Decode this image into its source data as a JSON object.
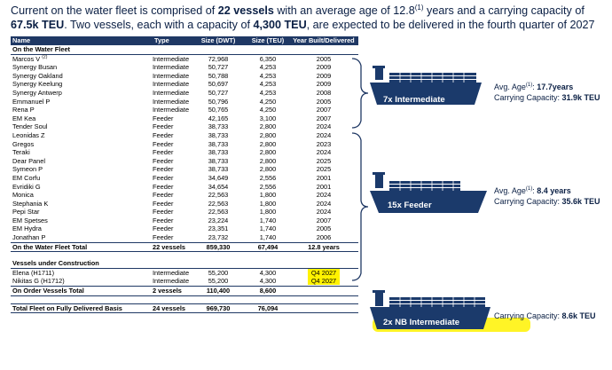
{
  "intro": {
    "p1": "Current on the water fleet is comprised of ",
    "vessels": "22 vessels",
    "p2": " with an average age of 12.8",
    "sup": "(1)",
    "p3": " years and a carrying capacity of ",
    "capacity": "67.5k TEU",
    "p4": ". Two vessels, each with a capacity of ",
    "teu": "4,300 TEU",
    "p5": ", are expected to be delivered in the fourth quarter of 2027"
  },
  "table": {
    "headers": {
      "name": "Name",
      "type": "Type",
      "dwt": "Size (DWT)",
      "teu": "Size (TEU)",
      "year": "Year Built/Delivered"
    },
    "section_water": "On the Water Fleet",
    "water_rows": [
      {
        "name": "Marcos V",
        "sup": "(2)",
        "type": "Intermediate",
        "dwt": "72,968",
        "teu": "6,350",
        "year": "2005"
      },
      {
        "name": "Synergy Busan",
        "type": "Intermediate",
        "dwt": "50,727",
        "teu": "4,253",
        "year": "2009"
      },
      {
        "name": "Synergy Oakland",
        "type": "Intermediate",
        "dwt": "50,788",
        "teu": "4,253",
        "year": "2009"
      },
      {
        "name": "Synergy Keelung",
        "type": "Intermediate",
        "dwt": "50,697",
        "teu": "4,253",
        "year": "2009"
      },
      {
        "name": "Synergy Antwerp",
        "type": "Intermediate",
        "dwt": "50,727",
        "teu": "4,253",
        "year": "2008"
      },
      {
        "name": "Emmanuel P",
        "type": "Intermediate",
        "dwt": "50,796",
        "teu": "4,250",
        "year": "2005"
      },
      {
        "name": "Rena P",
        "type": "Intermediate",
        "dwt": "50,765",
        "teu": "4,250",
        "year": "2007"
      },
      {
        "name": "EM Kea",
        "type": "Feeder",
        "dwt": "42,165",
        "teu": "3,100",
        "year": "2007"
      },
      {
        "name": "Tender Soul",
        "type": "Feeder",
        "dwt": "38,733",
        "teu": "2,800",
        "year": "2024"
      },
      {
        "name": "Leonidas Z",
        "type": "Feeder",
        "dwt": "38,733",
        "teu": "2,800",
        "year": "2024"
      },
      {
        "name": "Gregos",
        "type": "Feeder",
        "dwt": "38,733",
        "teu": "2,800",
        "year": "2023"
      },
      {
        "name": "Teraki",
        "type": "Feeder",
        "dwt": "38,733",
        "teu": "2,800",
        "year": "2024"
      },
      {
        "name": "Dear Panel",
        "type": "Feeder",
        "dwt": "38,733",
        "teu": "2,800",
        "year": "2025"
      },
      {
        "name": "Symeon P",
        "type": "Feeder",
        "dwt": "38,733",
        "teu": "2,800",
        "year": "2025"
      },
      {
        "name": "EM Corfu",
        "type": "Feeder",
        "dwt": "34,649",
        "teu": "2,556",
        "year": "2001"
      },
      {
        "name": "Evridiki G",
        "type": "Feeder",
        "dwt": "34,654",
        "teu": "2,556",
        "year": "2001"
      },
      {
        "name": "Monica",
        "type": "Feeder",
        "dwt": "22,563",
        "teu": "1,800",
        "year": "2024"
      },
      {
        "name": "Stephania K",
        "type": "Feeder",
        "dwt": "22,563",
        "teu": "1,800",
        "year": "2024"
      },
      {
        "name": "Pepi Star",
        "type": "Feeder",
        "dwt": "22,563",
        "teu": "1,800",
        "year": "2024"
      },
      {
        "name": "EM Spetses",
        "type": "Feeder",
        "dwt": "23,224",
        "teu": "1,740",
        "year": "2007"
      },
      {
        "name": "EM Hydra",
        "type": "Feeder",
        "dwt": "23,351",
        "teu": "1,740",
        "year": "2005"
      },
      {
        "name": "Jonathan P",
        "type": "Feeder",
        "dwt": "23,732",
        "teu": "1,740",
        "year": "2006"
      }
    ],
    "water_total": {
      "name": "On the Water Fleet Total",
      "type": "22 vessels",
      "dwt": "859,330",
      "teu": "67,494",
      "year": "12.8 years"
    },
    "section_construction": "Vessels under Construction",
    "construction_rows": [
      {
        "name": "Elena (H1711)",
        "type": "Intermediate",
        "dwt": "55,200",
        "teu": "4,300",
        "year": "Q4 2027"
      },
      {
        "name": "Nikitas G (H1712)",
        "type": "Intermediate",
        "dwt": "55,200",
        "teu": "4,300",
        "year": "Q4 2027"
      }
    ],
    "order_total": {
      "name": "On Order Vessels Total",
      "type": "2 vessels",
      "dwt": "110,400",
      "teu": "8,600",
      "year": ""
    },
    "fleet_total": {
      "name": "Total Fleet on Fully Delivered Basis",
      "type": "24 vessels",
      "dwt": "969,730",
      "teu": "76,094",
      "year": ""
    }
  },
  "groups": {
    "intermediate": {
      "label": "7x Intermediate",
      "age_label": "Avg. Age",
      "age_sup": "(1)",
      "age_value": "17.7years",
      "cap_label": "Carrying Capacity: ",
      "cap_value": "31.9k TEU"
    },
    "feeder": {
      "label": "15x Feeder",
      "age_label": "Avg. Age",
      "age_sup": "(1)",
      "age_value": "8.4 years",
      "cap_label": "Carrying Capacity: ",
      "cap_value": "35.6k TEU"
    },
    "newbuild": {
      "label": "2x NB Intermediate",
      "cap_label": "Carrying Capacity: ",
      "cap_value": "8.6k TEU"
    }
  },
  "colors": {
    "navy": "#1f3864",
    "ship": "#1b3a6b",
    "highlight": "#fff200"
  }
}
